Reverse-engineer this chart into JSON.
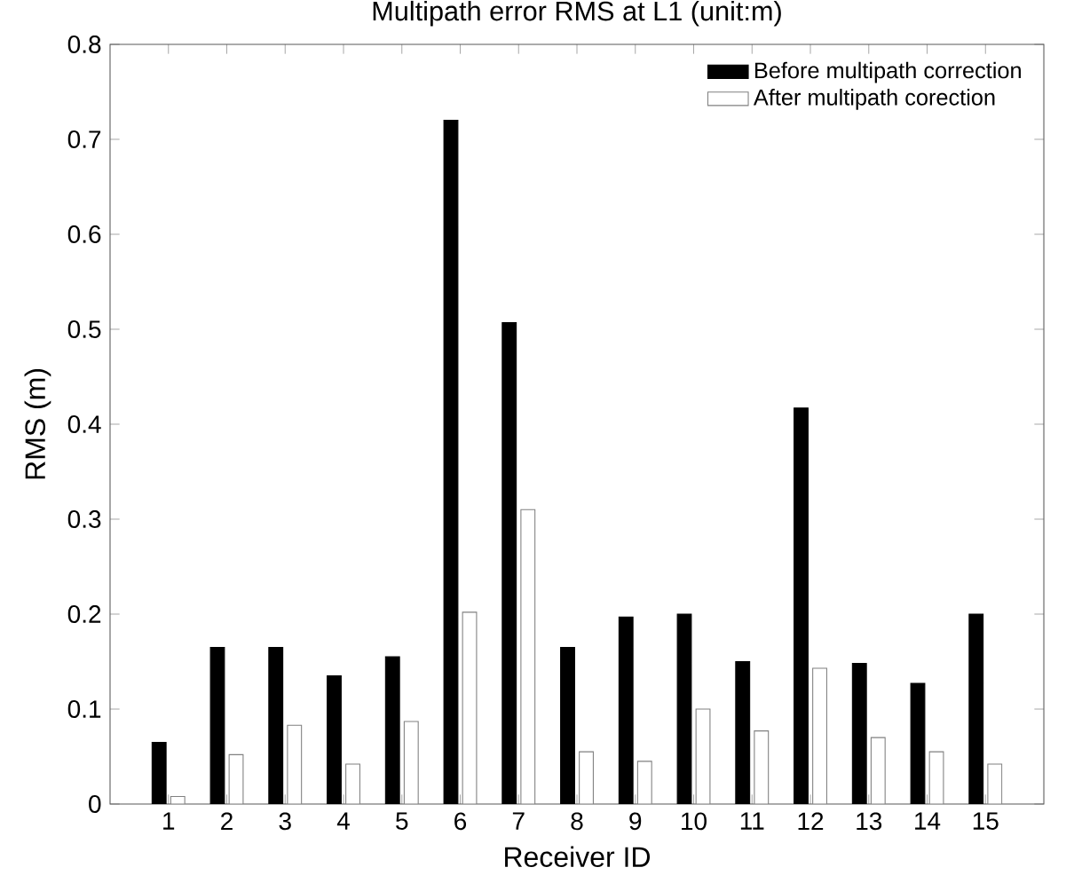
{
  "chart_data": {
    "type": "bar",
    "title": "Multipath error RMS at L1 (unit:m)",
    "xlabel": "Receiver ID",
    "ylabel": "RMS (m)",
    "categories": [
      "1",
      "2",
      "3",
      "4",
      "5",
      "6",
      "7",
      "8",
      "9",
      "10",
      "11",
      "12",
      "13",
      "14",
      "15"
    ],
    "series": [
      {
        "name": "Before multipath correction",
        "color": "#000000",
        "values": [
          0.065,
          0.165,
          0.165,
          0.135,
          0.155,
          0.72,
          0.507,
          0.165,
          0.197,
          0.2,
          0.15,
          0.417,
          0.148,
          0.127,
          0.2
        ]
      },
      {
        "name": "After multipath corection",
        "color": "#ffffff",
        "values": [
          0.008,
          0.052,
          0.083,
          0.042,
          0.087,
          0.202,
          0.31,
          0.055,
          0.045,
          0.1,
          0.077,
          0.143,
          0.07,
          0.055,
          0.042
        ]
      }
    ],
    "ylim": [
      0,
      0.8
    ],
    "yticks": [
      0,
      0.1,
      0.2,
      0.3,
      0.4,
      0.5,
      0.6,
      0.7,
      0.8
    ],
    "legend": "top right",
    "grid": false
  }
}
